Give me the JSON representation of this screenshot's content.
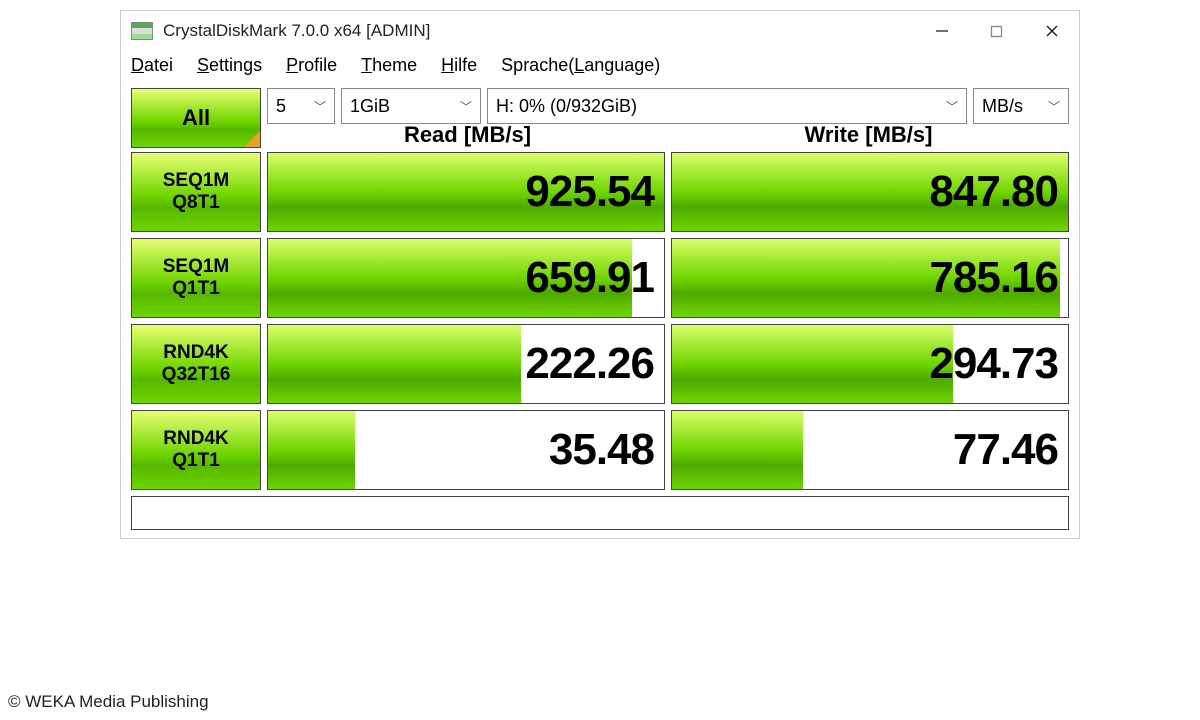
{
  "window": {
    "title": "CrystalDiskMark 7.0.0 x64 [ADMIN]"
  },
  "menu": {
    "datei": "Datei",
    "settings": "Settings",
    "profile": "Profile",
    "theme": "Theme",
    "hilfe": "Hilfe",
    "sprache": "Sprache(Language)"
  },
  "controls": {
    "all_label": "All",
    "count": "5",
    "size": "1GiB",
    "drive": "H: 0% (0/932GiB)",
    "unit": "MB/s"
  },
  "headers": {
    "read": "Read [MB/s]",
    "write": "Write [MB/s]"
  },
  "tests": [
    {
      "line1": "SEQ1M",
      "line2": "Q8T1",
      "read": "925.54",
      "read_pct": 100,
      "write": "847.80",
      "write_pct": 100
    },
    {
      "line1": "SEQ1M",
      "line2": "Q1T1",
      "read": "659.91",
      "read_pct": 92,
      "write": "785.16",
      "write_pct": 98
    },
    {
      "line1": "RND4K",
      "line2": "Q32T16",
      "read": "222.26",
      "read_pct": 64,
      "write": "294.73",
      "write_pct": 71
    },
    {
      "line1": "RND4K",
      "line2": "Q1T1",
      "read": "35.48",
      "read_pct": 22,
      "write": "77.46",
      "write_pct": 33
    }
  ],
  "style": {
    "green_gradient_top": "#e7ff74",
    "green_gradient_mid": "#6fd500",
    "green_gradient_dark": "#56b800",
    "border_color": "#444444",
    "value_fontsize": 44,
    "value_fontweight": 700,
    "label_fontsize": 19,
    "header_fontsize": 22,
    "background": "#ffffff"
  },
  "copyright": "© WEKA Media Publishing"
}
